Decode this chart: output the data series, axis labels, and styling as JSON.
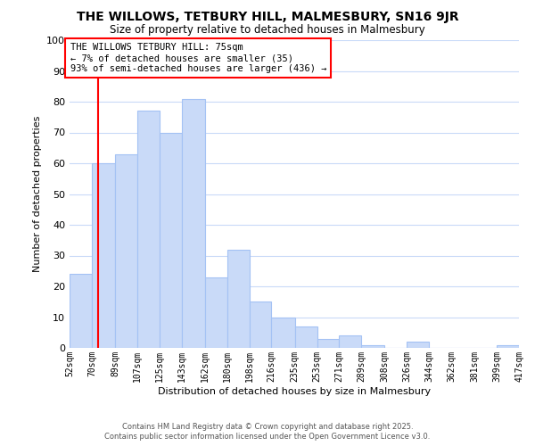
{
  "title": "THE WILLOWS, TETBURY HILL, MALMESBURY, SN16 9JR",
  "subtitle": "Size of property relative to detached houses in Malmesbury",
  "xlabel": "Distribution of detached houses by size in Malmesbury",
  "ylabel": "Number of detached properties",
  "bar_edges": [
    52,
    70,
    89,
    107,
    125,
    143,
    162,
    180,
    198,
    216,
    235,
    253,
    271,
    289,
    308,
    326,
    344,
    362,
    381,
    399,
    417
  ],
  "bar_heights": [
    24,
    60,
    63,
    77,
    70,
    81,
    23,
    32,
    15,
    10,
    7,
    3,
    4,
    1,
    0,
    2,
    0,
    0,
    0,
    1
  ],
  "bar_color": "#c9daf8",
  "bar_edge_color": "#a4c2f4",
  "tick_labels": [
    "52sqm",
    "70sqm",
    "89sqm",
    "107sqm",
    "125sqm",
    "143sqm",
    "162sqm",
    "180sqm",
    "198sqm",
    "216sqm",
    "235sqm",
    "253sqm",
    "271sqm",
    "289sqm",
    "308sqm",
    "326sqm",
    "344sqm",
    "362sqm",
    "381sqm",
    "399sqm",
    "417sqm"
  ],
  "ylim": [
    0,
    100
  ],
  "yticks": [
    0,
    10,
    20,
    30,
    40,
    50,
    60,
    70,
    80,
    90,
    100
  ],
  "property_line_x": 75,
  "annotation_title": "THE WILLOWS TETBURY HILL: 75sqm",
  "annotation_line1": "← 7% of detached houses are smaller (35)",
  "annotation_line2": "93% of semi-detached houses are larger (436) →",
  "footer_line1": "Contains HM Land Registry data © Crown copyright and database right 2025.",
  "footer_line2": "Contains public sector information licensed under the Open Government Licence v3.0.",
  "background_color": "#ffffff",
  "grid_color": "#c9daf8"
}
